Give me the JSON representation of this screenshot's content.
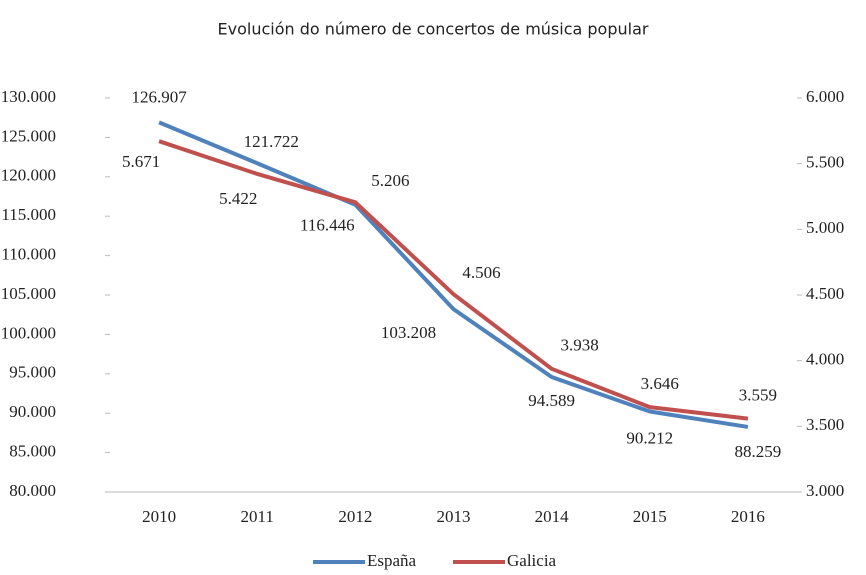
{
  "chart_data": {
    "type": "line",
    "title": "Evolución do número de concertos de música popular",
    "categories": [
      "2010",
      "2011",
      "2012",
      "2013",
      "2014",
      "2015",
      "2016"
    ],
    "series": [
      {
        "name": "España",
        "color": "#4f81bd",
        "axis": "y",
        "values": [
          126907,
          121722,
          116446,
          103208,
          94589,
          90212,
          88259
        ],
        "value_labels": [
          "126.907",
          "121.722",
          "116.446",
          "103.208",
          "94.589",
          "90.212",
          "88.259"
        ]
      },
      {
        "name": "Galicia",
        "color": "#c0504d",
        "axis": "y2",
        "values": [
          5671,
          5422,
          5206,
          4506,
          3938,
          3646,
          3559
        ],
        "value_labels": [
          "5.671",
          "5.422",
          "5.206",
          "4.506",
          "3.938",
          "3.646",
          "3.559"
        ]
      }
    ],
    "ylim": [
      80000,
      130000
    ],
    "yticks": [
      {
        "value": 80000,
        "label": "80.000"
      },
      {
        "value": 85000,
        "label": "85.000"
      },
      {
        "value": 90000,
        "label": "90.000"
      },
      {
        "value": 95000,
        "label": "95.000"
      },
      {
        "value": 100000,
        "label": "100.000"
      },
      {
        "value": 105000,
        "label": "105.000"
      },
      {
        "value": 110000,
        "label": "110.000"
      },
      {
        "value": 115000,
        "label": "115.000"
      },
      {
        "value": 120000,
        "label": "120.000"
      },
      {
        "value": 125000,
        "label": "125.000"
      },
      {
        "value": 130000,
        "label": "130.000"
      }
    ],
    "y2lim": [
      3000,
      6000
    ],
    "y2ticks": [
      {
        "value": 3000,
        "label": "3.000"
      },
      {
        "value": 3500,
        "label": "3.500"
      },
      {
        "value": 4000,
        "label": "4.000"
      },
      {
        "value": 4500,
        "label": "4.500"
      },
      {
        "value": 5000,
        "label": "5.000"
      },
      {
        "value": 5500,
        "label": "5.500"
      },
      {
        "value": 6000,
        "label": "6.000"
      }
    ],
    "legend": "bottom"
  }
}
